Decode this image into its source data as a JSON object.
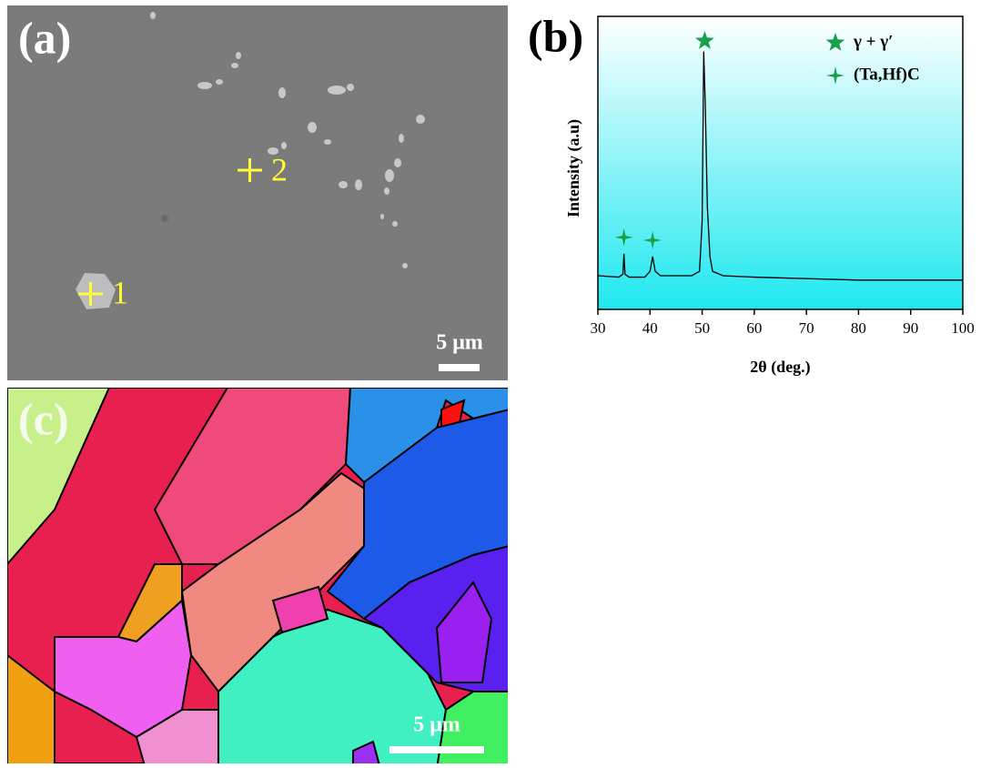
{
  "panels": {
    "a": {
      "label": "(a)",
      "points": [
        "1",
        "2"
      ],
      "scale_bar": "5 μm"
    },
    "b": {
      "label": "(b)"
    },
    "c": {
      "label": "(c)",
      "scale_bar": "5 μm"
    }
  },
  "chart_data": {
    "type": "line",
    "xlabel": "2θ (deg.)",
    "ylabel": "Intensity (a.u)",
    "color": "#000000",
    "x": [
      30,
      34,
      34.8,
      35,
      35.2,
      36,
      39,
      40,
      40.5,
      41,
      42,
      48,
      49.5,
      50,
      50.3,
      50.6,
      51,
      51.5,
      52,
      54,
      60,
      70,
      80,
      90,
      100
    ],
    "values": [
      11.5,
      11,
      12,
      19,
      12,
      11,
      11,
      13,
      18,
      13,
      11.5,
      11.5,
      13,
      30,
      88,
      70,
      35,
      18,
      13,
      11.5,
      11,
      10.5,
      10,
      10,
      10
    ],
    "xlim": [
      30,
      100
    ],
    "xticks": [
      30,
      40,
      50,
      60,
      70,
      80,
      90,
      100
    ],
    "ylim": [
      0,
      100
    ],
    "legend": [
      {
        "label": "γ + γ′",
        "color": "#1aa04a",
        "x": [
          50.5
        ]
      },
      {
        "label": "(Ta,Hf)C",
        "color": "#1aa04a",
        "x": [
          35,
          40.5
        ]
      }
    ]
  }
}
